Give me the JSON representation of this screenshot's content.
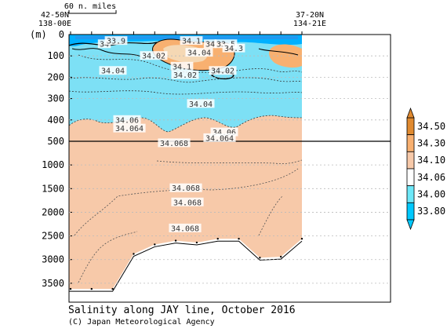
{
  "header": {
    "left_lat": "42-50N",
    "left_lon": "138-00E",
    "right_lat": "37-20N",
    "right_lon": "134-21E",
    "scale_label": "60 n. miles"
  },
  "footer": {
    "title": "Salinity along JAY line, October 2016",
    "credit": "(C) Japan Meteorological Agency"
  },
  "chart_data": {
    "type": "contour",
    "title": "Salinity along JAY line, October 2016",
    "ylabel": "(m)",
    "y_unit": "m",
    "upper_panel": {
      "ylim": [
        0,
        500
      ],
      "y_ticks": [
        "0",
        "100",
        "200",
        "300",
        "400",
        "500"
      ]
    },
    "lower_panel": {
      "ylim": [
        500,
        3900
      ],
      "y_ticks": [
        "1000",
        "1500",
        "2000",
        "2500",
        "3000",
        "3500"
      ]
    },
    "contour_labels": [
      {
        "text": "34",
        "depth_m": 45
      },
      {
        "text": "33.9",
        "depth_m": 30
      },
      {
        "text": "33.5",
        "depth_m": 45
      },
      {
        "text": "34",
        "depth_m": 45
      },
      {
        "text": "34.1",
        "depth_m": 30
      },
      {
        "text": "34.04",
        "depth_m": 85
      },
      {
        "text": "34.3",
        "depth_m": 65
      },
      {
        "text": "34.02",
        "depth_m": 100
      },
      {
        "text": "34.1",
        "depth_m": 150
      },
      {
        "text": "34.02",
        "depth_m": 190
      },
      {
        "text": "34.04",
        "depth_m": 170
      },
      {
        "text": "34.02",
        "depth_m": 170
      },
      {
        "text": "34.04",
        "depth_m": 325
      },
      {
        "text": "34.06",
        "depth_m": 400
      },
      {
        "text": "34.064",
        "depth_m": 440
      },
      {
        "text": "34.06",
        "depth_m": 458
      },
      {
        "text": "34.064",
        "depth_m": 485
      },
      {
        "text": "34.068",
        "depth_m": 540
      },
      {
        "text": "34.068",
        "depth_m": 1490
      },
      {
        "text": "34.068",
        "depth_m": 1790
      },
      {
        "text": "34.068",
        "depth_m": 2340
      }
    ],
    "colorbar": {
      "levels": [
        "33.80",
        "34.00",
        "34.06",
        "34.10",
        "34.30",
        "34.50"
      ],
      "colors": [
        "#00c8ff",
        "#6de8f8",
        "#ffffff",
        "#f7c9a9",
        "#f8b070",
        "#e08a30"
      ]
    },
    "bottom_depth_m": [
      3620,
      3620,
      3620,
      2880,
      2680,
      2600,
      2640,
      2560,
      2560,
      2960,
      2940,
      2560
    ]
  },
  "colors": {
    "fill_high": "#f7c9a9",
    "fill_low": "#7de0f5",
    "fill_min": "#00b0ff",
    "frame": "#000000"
  }
}
